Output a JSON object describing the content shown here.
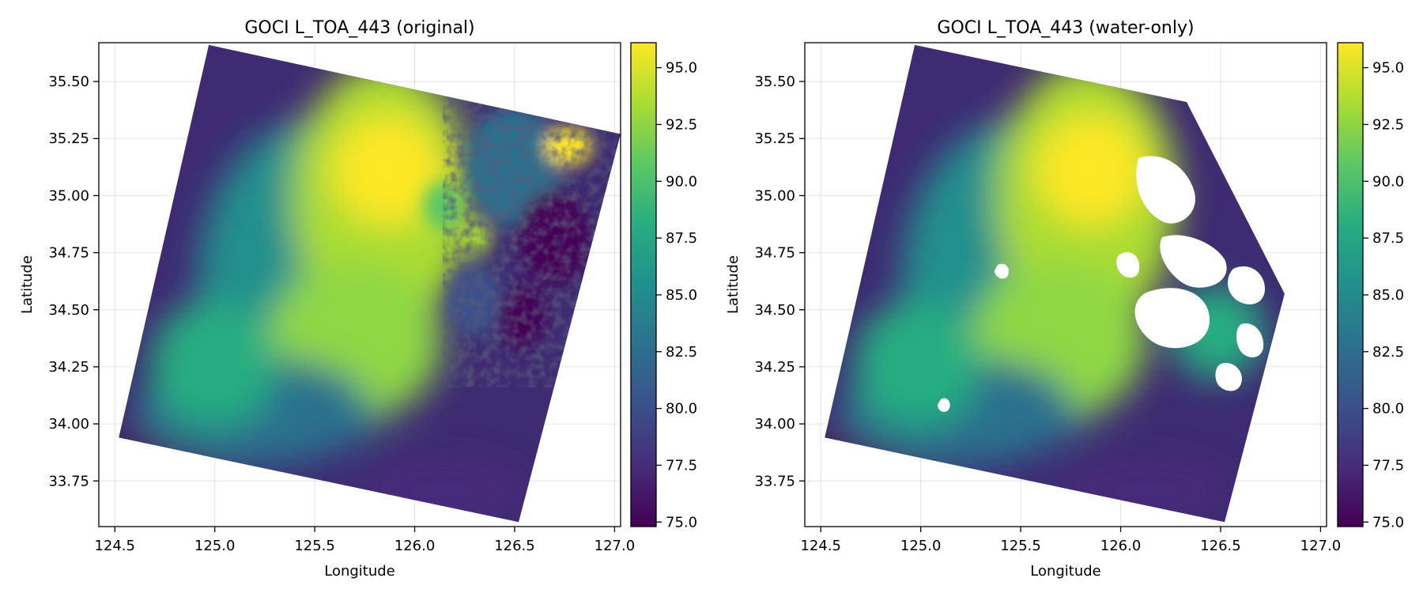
{
  "chart_data": [
    {
      "type": "heatmap",
      "title": "GOCI L_TOA_443 (original)",
      "xlabel": "Longitude",
      "ylabel": "Latitude",
      "xlim": [
        124.42,
        127.03
      ],
      "ylim": [
        33.55,
        35.67
      ],
      "xticks": [
        "124.5",
        "125.0",
        "125.5",
        "126.0",
        "126.5",
        "127.0"
      ],
      "yticks": [
        "33.75",
        "34.00",
        "34.25",
        "34.50",
        "34.75",
        "35.00",
        "35.25",
        "35.50"
      ],
      "grid": true,
      "colormap": "viridis",
      "colorbar": {
        "range": [
          74.8,
          96.1
        ],
        "ticks": [
          "75.0",
          "77.5",
          "80.0",
          "82.5",
          "85.0",
          "87.5",
          "90.0",
          "92.5",
          "95.0"
        ]
      },
      "swath_corners_lonlat": [
        [
          124.97,
          35.66
        ],
        [
          127.03,
          35.27
        ],
        [
          126.52,
          33.57
        ],
        [
          124.52,
          33.94
        ]
      ],
      "land_mask": false
    },
    {
      "type": "heatmap",
      "title": "GOCI L_TOA_443 (water-only)",
      "xlabel": "Longitude",
      "ylabel": "Latitude",
      "xlim": [
        124.42,
        127.03
      ],
      "ylim": [
        33.55,
        35.67
      ],
      "xticks": [
        "124.5",
        "125.0",
        "125.5",
        "126.0",
        "126.5",
        "127.0"
      ],
      "yticks": [
        "33.75",
        "34.00",
        "34.25",
        "34.50",
        "34.75",
        "35.00",
        "35.25",
        "35.50"
      ],
      "grid": true,
      "colormap": "viridis",
      "colorbar": {
        "range": [
          74.8,
          96.1
        ],
        "ticks": [
          "75.0",
          "77.5",
          "80.0",
          "82.5",
          "85.0",
          "87.5",
          "90.0",
          "92.5",
          "95.0"
        ]
      },
      "swath_corners_lonlat": [
        [
          124.97,
          35.66
        ],
        [
          126.33,
          35.41
        ],
        [
          126.82,
          34.57
        ],
        [
          126.52,
          33.57
        ],
        [
          124.52,
          33.94
        ]
      ],
      "land_mask": true
    }
  ],
  "colors": {
    "viridis": [
      "#440154",
      "#472c7a",
      "#3b518b",
      "#2c718e",
      "#21908d",
      "#27ad81",
      "#5cc863",
      "#aadc32",
      "#fde725"
    ]
  }
}
